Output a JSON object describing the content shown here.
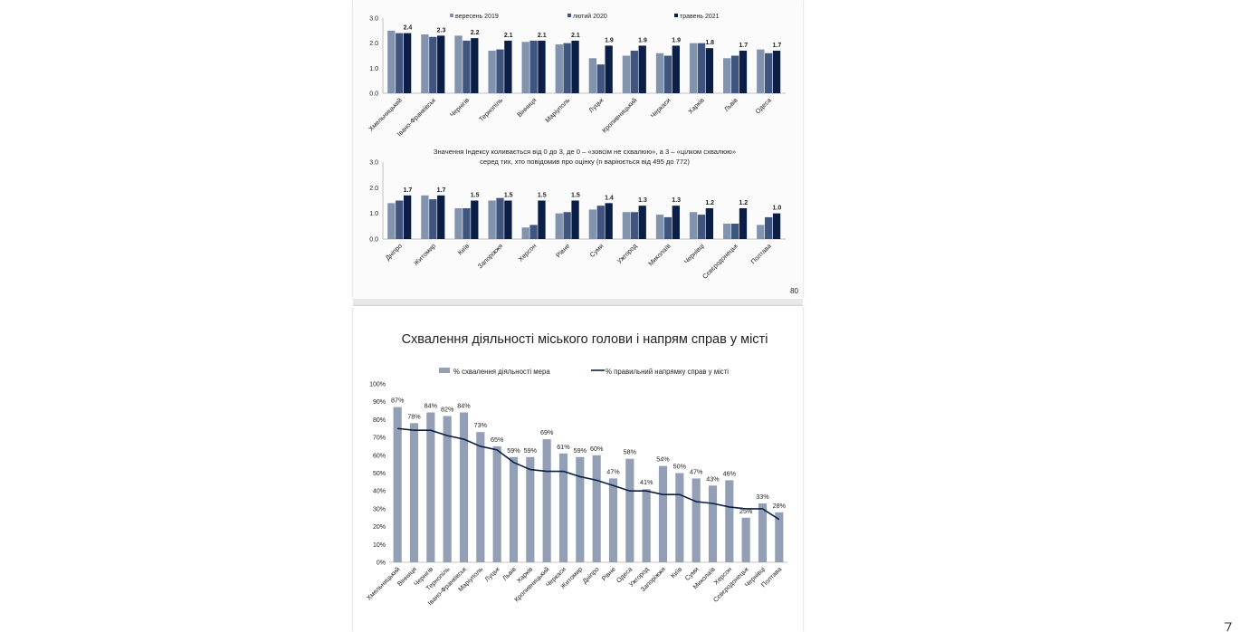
{
  "colors": {
    "s2019": "#8294ad",
    "s2020": "#3f557f",
    "s2021": "#0b1f46",
    "approval_bar": "#939fb4",
    "direction_line": "#0b1f46",
    "axis": "#b0b0b0"
  },
  "slide1": {
    "page_number": "80",
    "charts": [
      {
        "type": "bar",
        "title": "",
        "subtitle_lines": [],
        "legend": [
          "вересень 2019",
          "лютий 2020",
          "травень 2021"
        ],
        "ylim": [
          0,
          3
        ],
        "yticks": [
          "0.0",
          "1.0",
          "2.0",
          "3.0"
        ],
        "categories": [
          "Хмельницький",
          "Івано-Франківськ",
          "Чернігів",
          "Тернопіль",
          "Вінниця",
          "Маріуполь",
          "Луцьк",
          "Кропивницький",
          "Черкаси",
          "Харків",
          "Львів",
          "Одеса"
        ],
        "series": [
          {
            "name": "вересень 2019",
            "values": [
              2.5,
              2.35,
              2.3,
              1.7,
              2.05,
              1.95,
              1.4,
              1.5,
              1.6,
              2.0,
              1.4,
              1.75
            ]
          },
          {
            "name": "лютий 2020",
            "values": [
              2.4,
              2.25,
              2.1,
              1.75,
              2.1,
              2.0,
              1.15,
              1.7,
              1.5,
              2.0,
              1.5,
              1.6
            ]
          },
          {
            "name": "травень 2021",
            "values": [
              2.4,
              2.3,
              2.2,
              2.1,
              2.1,
              2.1,
              1.9,
              1.9,
              1.9,
              1.8,
              1.7,
              1.7
            ]
          }
        ],
        "labels": [
          "2.4",
          "2.3",
          "2.2",
          "2.1",
          "2.1",
          "2.1",
          "1.9",
          "1.9",
          "1.9",
          "1.8",
          "1.7",
          "1.7"
        ]
      },
      {
        "type": "bar",
        "title": "",
        "subtitle_lines": [
          "Значення Індексу коливається від 0 до 3, де 0 – «зовсім не схвалюю», а 3 – «цілком схвалюю»",
          "серед тих, хто повідомив про оцінку (n варіюється від 495 до 772)"
        ],
        "legend": [],
        "ylim": [
          0,
          3
        ],
        "yticks": [
          "0.0",
          "1.0",
          "2.0",
          "3.0"
        ],
        "categories": [
          "Дніпро",
          "Житомир",
          "Київ",
          "Запоріжжя",
          "Херсон",
          "Рівне",
          "Суми",
          "Ужгород",
          "Миколаїв",
          "Чернівці",
          "Сєвєродонецьк",
          "Полтава"
        ],
        "series": [
          {
            "name": "вересень 2019",
            "values": [
              1.4,
              1.7,
              1.2,
              1.5,
              0.45,
              1.0,
              1.15,
              1.05,
              0.95,
              1.05,
              0.6,
              0.55
            ]
          },
          {
            "name": "лютий 2020",
            "values": [
              1.5,
              1.55,
              1.2,
              1.6,
              0.55,
              1.05,
              1.3,
              1.05,
              0.85,
              0.95,
              0.6,
              0.85
            ]
          },
          {
            "name": "травень 2021",
            "values": [
              1.7,
              1.7,
              1.5,
              1.5,
              1.5,
              1.5,
              1.4,
              1.3,
              1.3,
              1.2,
              1.2,
              1.0
            ]
          }
        ],
        "labels": [
          "1.7",
          "1.7",
          "1.5",
          "1.5",
          "1.5",
          "1.5",
          "1.4",
          "1.3",
          "1.3",
          "1.2",
          "1.2",
          "1.0"
        ]
      }
    ]
  },
  "slide2": {
    "title": "Схвалення діяльності міського голови і напрям справ у місті",
    "chart_data": {
      "type": "bar",
      "legend": [
        "% схвалення діяльності мера",
        "% правильний напрямку справ у місті"
      ],
      "ylim": [
        0,
        100
      ],
      "yticks": [
        "0%",
        "10%",
        "20%",
        "30%",
        "40%",
        "50%",
        "60%",
        "70%",
        "80%",
        "90%",
        "100%"
      ],
      "categories": [
        "Хмельницький",
        "Вінниця",
        "Чернігів",
        "Тернопіль",
        "Івано-Франківськ",
        "Маріуполь",
        "Луцьк",
        "Львів",
        "Харків",
        "Кропивницький",
        "Черкаси",
        "Житомир",
        "Дніпро",
        "Рівне",
        "Одеса",
        "Ужгород",
        "Запоріжжя",
        "Київ",
        "Суми",
        "Миколаїв",
        "Херсон",
        "Сєвєродонецьк",
        "Чернівці",
        "Полтава"
      ],
      "series": [
        {
          "name": "% схвалення діяльності мера",
          "type": "bar",
          "values": [
            87,
            78,
            84,
            82,
            84,
            73,
            65,
            59,
            59,
            69,
            61,
            59,
            60,
            47,
            58,
            41,
            54,
            50,
            47,
            43,
            46,
            25,
            33,
            28
          ]
        },
        {
          "name": "% правильний напрямку справ у місті",
          "type": "line",
          "values": [
            75,
            74,
            74,
            71,
            69,
            65,
            63,
            56,
            52,
            51,
            51,
            48,
            46,
            43,
            40,
            40,
            38,
            38,
            34,
            33,
            31,
            30,
            30,
            24
          ]
        }
      ],
      "labels": [
        "87%",
        "78%",
        "84%",
        "82%",
        "84%",
        "73%",
        "65%",
        "59%",
        "59%",
        "69%",
        "61%",
        "59%",
        "60%",
        "47%",
        "58%",
        "41%",
        "54%",
        "50%",
        "47%",
        "43%",
        "46%",
        "25%",
        "33%",
        "28%"
      ]
    }
  }
}
